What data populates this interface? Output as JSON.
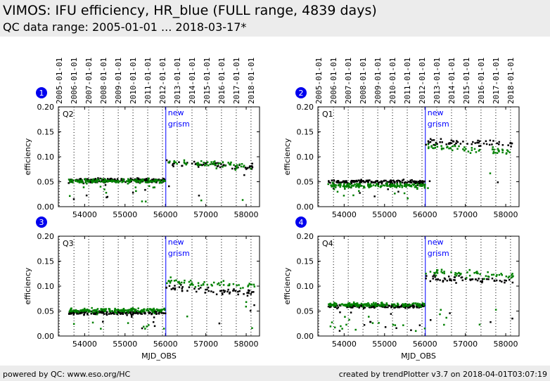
{
  "header": {
    "title": "VIMOS: IFU efficiency, HR_blue (FULL range, 4839 days)",
    "subtitle": "QC data range: 2005-01-01 ... 2018-03-17*"
  },
  "footer": {
    "left": "powered by QC: www.eso.org/HC",
    "right": "created by trendPlotter v3.7 on 2018-04-01T03:07:19"
  },
  "colors": {
    "series_a": "#000000",
    "series_b": "#008000",
    "marker_line": "#0000ff",
    "badge": "#0000ee"
  },
  "chart_data": [
    {
      "type": "scatter",
      "panel": 1,
      "label": "Q2",
      "xlabel": "",
      "ylabel": "efficiency",
      "xlim": [
        53350,
        58330
      ],
      "ylim": [
        0,
        0.2
      ],
      "xticks": [
        54000,
        55000,
        56000,
        57000,
        58000
      ],
      "yticks": [
        "0.00",
        "0.05",
        "0.10",
        "0.15",
        "0.20"
      ],
      "date_ticks": [
        "2005-01-01",
        "2006-01-01",
        "2007-01-01",
        "2008-01-01",
        "2009-01-01",
        "2010-01-01",
        "2011-01-01",
        "2012-01-01",
        "2013-01-01",
        "2014-01-01",
        "2015-01-01",
        "2016-01-01",
        "2017-01-01",
        "2018-01-01"
      ],
      "date_mjd": [
        53371,
        53736,
        54101,
        54466,
        54832,
        55197,
        55562,
        55927,
        56293,
        56658,
        57023,
        57388,
        57754,
        58119
      ],
      "annotation": {
        "x": 56010,
        "lines": [
          "new",
          "grism"
        ]
      },
      "series": [
        {
          "name": "black",
          "color": "#000000",
          "base_pre": 0.053,
          "base_post": 0.088,
          "post_end": 0.08
        },
        {
          "name": "green",
          "color": "#008000",
          "base_pre": 0.052,
          "base_post": 0.09,
          "post_end": 0.08
        }
      ]
    },
    {
      "type": "scatter",
      "panel": 2,
      "label": "Q1",
      "xlabel": "",
      "ylabel": "efficiency",
      "xlim": [
        53350,
        58330
      ],
      "ylim": [
        0,
        0.2
      ],
      "xticks": [
        54000,
        55000,
        56000,
        57000,
        58000
      ],
      "yticks": [
        "0.00",
        "0.05",
        "0.10",
        "0.15",
        "0.20"
      ],
      "date_ticks": [
        "2005-01-01",
        "2006-01-01",
        "2007-01-01",
        "2008-01-01",
        "2009-01-01",
        "2010-01-01",
        "2011-01-01",
        "2012-01-01",
        "2013-01-01",
        "2014-01-01",
        "2015-01-01",
        "2016-01-01",
        "2017-01-01",
        "2018-01-01"
      ],
      "date_mjd": [
        53371,
        53736,
        54101,
        54466,
        54832,
        55197,
        55562,
        55927,
        56293,
        56658,
        57023,
        57388,
        57754,
        58119
      ],
      "annotation": {
        "x": 56010,
        "lines": [
          "new",
          "grism"
        ]
      },
      "series": [
        {
          "name": "black",
          "color": "#000000",
          "base_pre": 0.05,
          "base_post": 0.13,
          "post_end": 0.125
        },
        {
          "name": "green",
          "color": "#008000",
          "base_pre": 0.043,
          "base_post": 0.12,
          "post_end": 0.11
        }
      ]
    },
    {
      "type": "scatter",
      "panel": 3,
      "label": "Q3",
      "xlabel": "MJD_OBS",
      "ylabel": "efficiency",
      "xlim": [
        53350,
        58330
      ],
      "ylim": [
        0,
        0.2
      ],
      "xticks": [
        54000,
        55000,
        56000,
        57000,
        58000
      ],
      "yticks": [
        "0.00",
        "0.05",
        "0.10",
        "0.15",
        "0.20"
      ],
      "annotation": {
        "x": 56010,
        "lines": [
          "new",
          "grism"
        ]
      },
      "series": [
        {
          "name": "black",
          "color": "#000000",
          "base_pre": 0.047,
          "base_post": 0.098,
          "post_end": 0.086
        },
        {
          "name": "green",
          "color": "#008000",
          "base_pre": 0.052,
          "base_post": 0.11,
          "post_end": 0.1
        }
      ]
    },
    {
      "type": "scatter",
      "panel": 4,
      "label": "Q4",
      "xlabel": "MJD_OBS",
      "ylabel": "efficiency",
      "xlim": [
        53350,
        58330
      ],
      "ylim": [
        0,
        0.2
      ],
      "xticks": [
        54000,
        55000,
        56000,
        57000,
        58000
      ],
      "yticks": [
        "0.00",
        "0.05",
        "0.10",
        "0.15",
        "0.20"
      ],
      "annotation": {
        "x": 56010,
        "lines": [
          "new",
          "grism"
        ]
      },
      "series": [
        {
          "name": "black",
          "color": "#000000",
          "base_pre": 0.06,
          "base_post": 0.115,
          "post_end": 0.11
        },
        {
          "name": "green",
          "color": "#008000",
          "base_pre": 0.063,
          "base_post": 0.13,
          "post_end": 0.12
        }
      ]
    }
  ]
}
